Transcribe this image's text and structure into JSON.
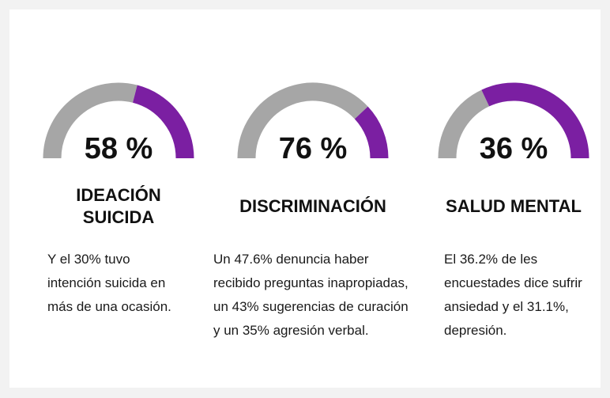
{
  "chart_data": [
    {
      "type": "gauge",
      "values": [
        58
      ],
      "value_labels": [
        "58 %"
      ],
      "colors": [
        "#a6a6a6",
        "#7b1fa2"
      ],
      "title_lines": [
        "IDEACIÓN",
        "SUICIDA"
      ],
      "description": [
        "Y el 30% tuvo",
        "intención suicida en",
        "más de una ocasión."
      ]
    },
    {
      "type": "gauge",
      "values": [
        76
      ],
      "value_labels": [
        "76 %"
      ],
      "colors": [
        "#a6a6a6",
        "#7b1fa2"
      ],
      "title_lines": [
        "DISCRIMINACIÓN"
      ],
      "description": [
        "Un 47.6% denuncia haber",
        "recibido preguntas inapropiadas,",
        "un 43% sugerencias de curación",
        "y un 35% agresión verbal."
      ]
    },
    {
      "type": "gauge",
      "values": [
        36
      ],
      "value_labels": [
        "36 %"
      ],
      "colors": [
        "#a6a6a6",
        "#7b1fa2"
      ],
      "title_lines": [
        "SALUD MENTAL"
      ],
      "description": [
        "El 36.2% de les",
        "encuestades dice sufrir",
        "ansiedad y el 31.1%,",
        "depresión."
      ]
    }
  ]
}
